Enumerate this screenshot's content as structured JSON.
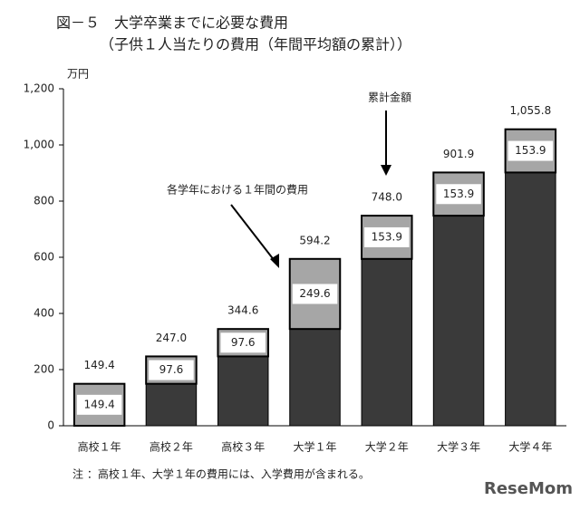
{
  "chart_data": {
    "type": "bar",
    "title": "図－５　大学卒業までに必要な費用",
    "subtitle": "（子供１人当たりの費用（年間平均額の累計））",
    "y_unit": "万円",
    "categories": [
      "高校１年",
      "高校２年",
      "高校３年",
      "大学１年",
      "大学２年",
      "大学３年",
      "大学４年"
    ],
    "series": [
      {
        "color": "#3a3a3a",
        "values": [
          0,
          149.4,
          247.0,
          344.6,
          594.2,
          748.0,
          901.9
        ]
      },
      {
        "color": "#a6a6a6",
        "values": [
          149.4,
          97.6,
          97.6,
          249.6,
          153.9,
          153.9,
          153.9
        ]
      }
    ],
    "totals": {
      "values": [
        149.4,
        247.0,
        344.6,
        594.2,
        748.0,
        901.9,
        1055.8
      ],
      "value_labels": [
        "149.4",
        "247.0",
        "344.6",
        "594.2",
        "748.0",
        "901.9",
        "1,055.8"
      ]
    },
    "ylim": [
      0,
      1200
    ],
    "yticks": [
      0,
      200,
      400,
      600,
      800,
      {
        "value": 1000,
        "label": "1,000"
      },
      {
        "value": 1200,
        "label": "1,200"
      }
    ],
    "annotations": [
      "累計金額",
      "各学年における１年間の費用"
    ],
    "note": "注 ：高校１年、大学１年の費用には、入学費用が含まれる。",
    "watermark": "ReseMom"
  }
}
